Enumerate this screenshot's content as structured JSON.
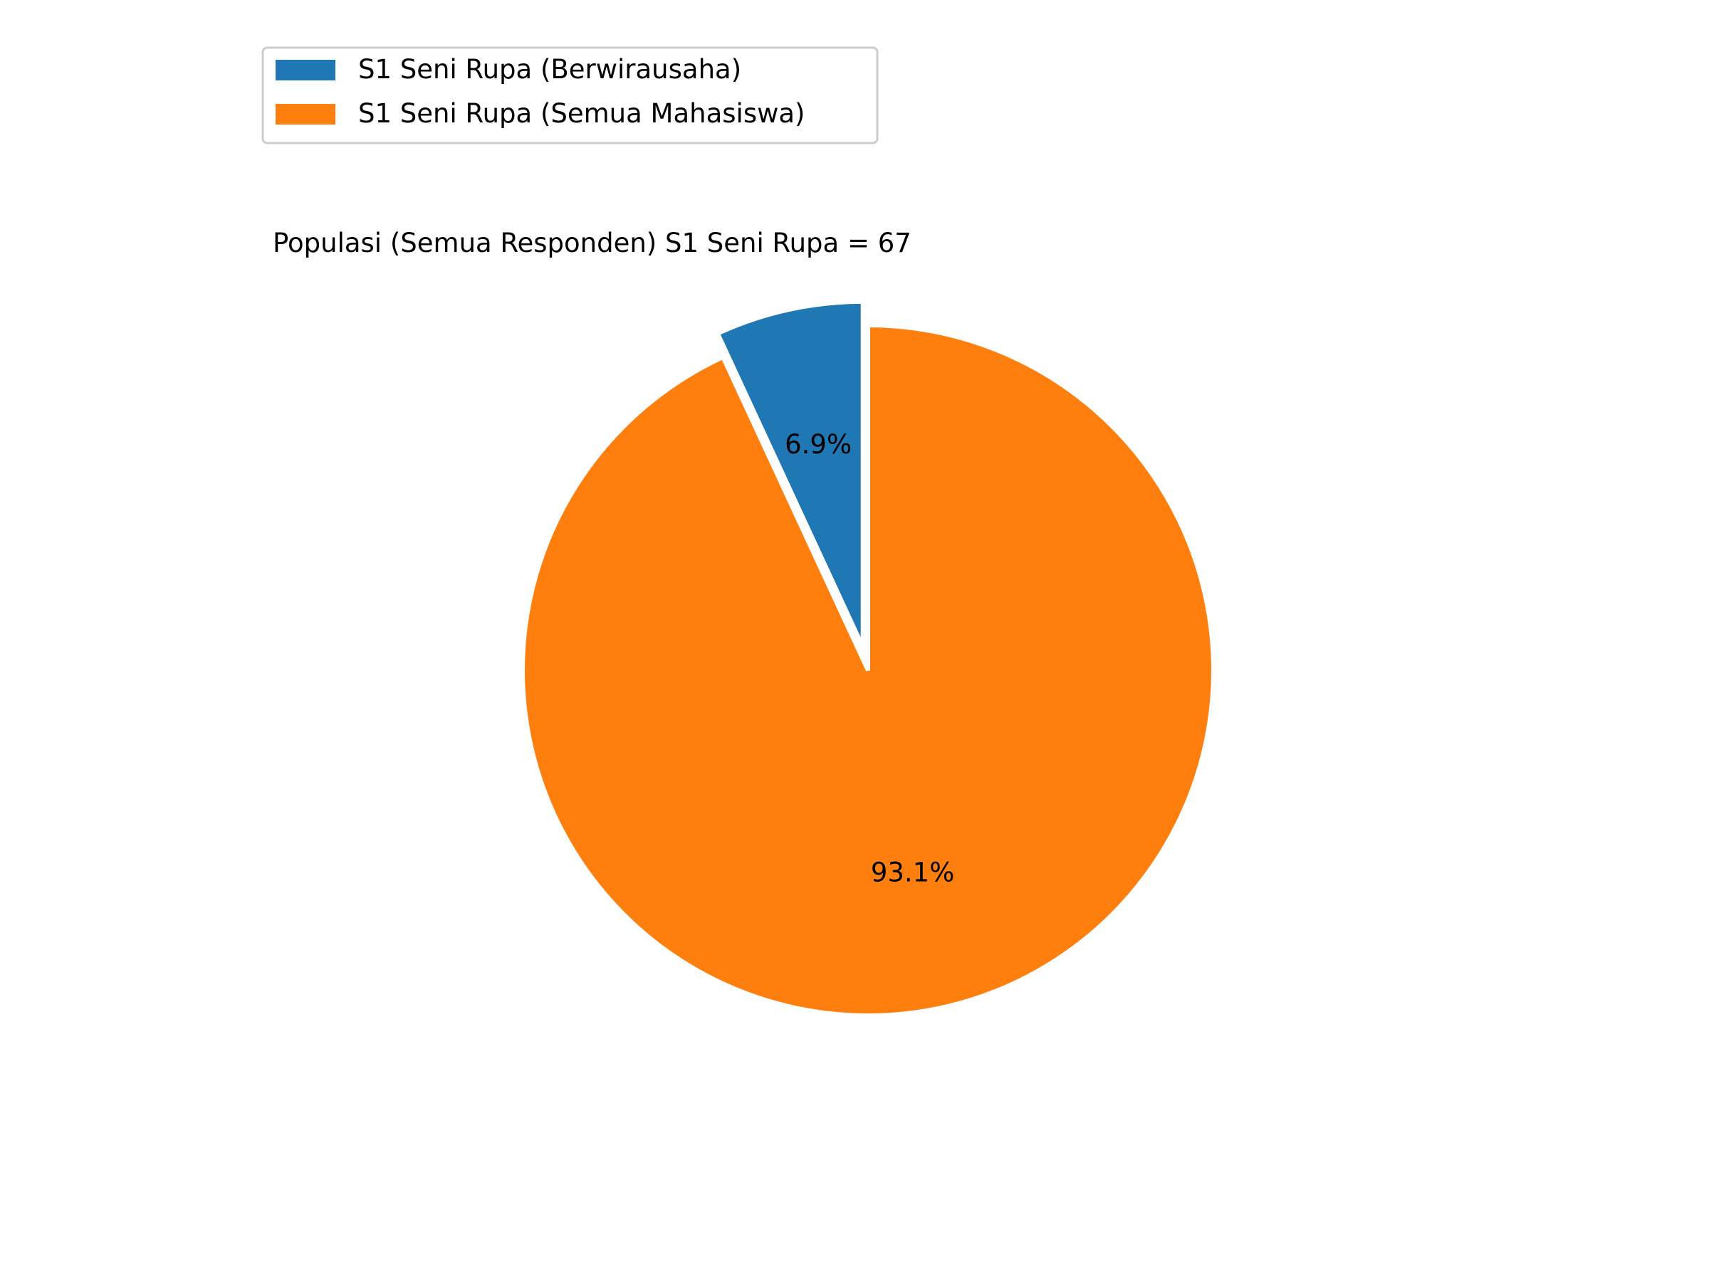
{
  "chart_data": {
    "type": "pie",
    "title": "Populasi (Semua Responden) S1 Seni Rupa = 67",
    "labels": [
      "S1 Seni Rupa (Berwirausaha)",
      "S1 Seni Rupa (Semua Mahasiswa)"
    ],
    "values": [
      6.9,
      93.1
    ],
    "value_labels": [
      "6.9%",
      "93.1%"
    ],
    "colors": [
      "#1f77b4",
      "#ff7f0e"
    ],
    "explode": [
      0.07,
      0
    ],
    "start_angle_deg": 90,
    "direction": "counterclockwise",
    "legend": {
      "placement": "top-left",
      "entries": [
        "S1 Seni Rupa (Berwirausaha)",
        "S1 Seni Rupa (Semua Mahasiswa)"
      ]
    }
  }
}
